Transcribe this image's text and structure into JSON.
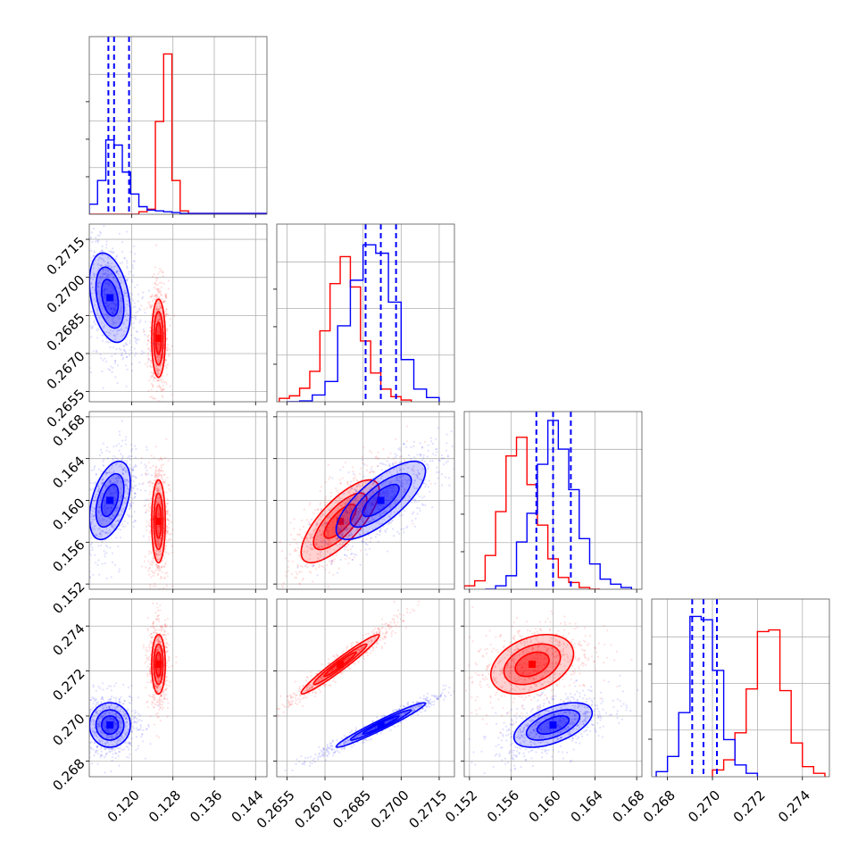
{
  "chart_data": {
    "type": "corner",
    "grid": true,
    "colors": {
      "blue_series": "#0000ff",
      "red_series": "#ff0000",
      "grid": "#b0b0b0",
      "axes": "#000000"
    },
    "series": [
      {
        "color": "blue"
      },
      {
        "color": "red"
      }
    ],
    "parameters": [
      {
        "range": [
          0.1118,
          0.1462
        ],
        "x_ticks": [
          "0.120",
          "0.128",
          "0.136",
          "0.144"
        ],
        "x_tick_values": [
          0.12,
          0.128,
          0.136,
          0.144
        ],
        "quantile_lines": [
          0.1155,
          0.1166,
          0.1195
        ],
        "histograms": {
          "blue": {
            "bins": [
              0.1118,
              0.1134,
              0.115,
              0.1166,
              0.1182,
              0.1198,
              0.1214,
              0.123,
              0.1246,
              0.1262,
              0.1278,
              0.1294,
              0.1462
            ],
            "counts": [
              0.06,
              0.2,
              0.44,
              0.41,
              0.25,
              0.12,
              0.045,
              0.025,
              0.02,
              0.015,
              0.01,
              0.005
            ]
          },
          "red": {
            "bins": [
              0.1118,
              0.1214,
              0.123,
              0.1246,
              0.1262,
              0.1278,
              0.1294,
              0.131,
              0.1462
            ],
            "counts": [
              0.0,
              0.015,
              0.03,
              0.55,
              0.95,
              0.2,
              0.02,
              0.005
            ]
          }
        }
      },
      {
        "range": [
          0.2651,
          0.2721
        ],
        "x_ticks": [
          "0.2655",
          "0.2670",
          "0.2685",
          "0.2700",
          "0.2715"
        ],
        "x_tick_values": [
          0.2655,
          0.267,
          0.2685,
          0.27,
          0.2715
        ],
        "y_ticks": [
          "0.2655",
          "0.2670",
          "0.2685",
          "0.2700",
          "0.2715"
        ],
        "y_tick_values": [
          0.2655,
          0.267,
          0.2685,
          0.27,
          0.2715
        ],
        "quantile_lines": [
          0.2686,
          0.2692,
          0.2698
        ],
        "histograms": {
          "blue": {
            "bins": [
              0.2655,
              0.266,
              0.2665,
              0.267,
              0.2675,
              0.268,
              0.2685,
              0.269,
              0.2695,
              0.27,
              0.2705,
              0.271,
              0.2715
            ],
            "counts": [
              0.0,
              0.005,
              0.04,
              0.12,
              0.45,
              0.72,
              0.93,
              0.88,
              0.59,
              0.25,
              0.075,
              0.025
            ]
          },
          "red": {
            "bins": [
              0.2652,
              0.2656,
              0.266,
              0.2664,
              0.2668,
              0.2672,
              0.2676,
              0.268,
              0.2684,
              0.2688,
              0.2692,
              0.2696,
              0.27,
              0.2704
            ],
            "counts": [
              0.02,
              0.035,
              0.08,
              0.18,
              0.42,
              0.7,
              0.86,
              0.68,
              0.36,
              0.17,
              0.075,
              0.03,
              0.01
            ]
          }
        }
      },
      {
        "range": [
          0.1515,
          0.1685
        ],
        "x_ticks": [
          "0.152",
          "0.156",
          "0.160",
          "0.164",
          "0.168"
        ],
        "x_tick_values": [
          0.152,
          0.156,
          0.16,
          0.164,
          0.168
        ],
        "y_ticks": [
          "0.152",
          "0.156",
          "0.160",
          "0.164",
          "0.168"
        ],
        "y_tick_values": [
          0.152,
          0.156,
          0.16,
          0.164,
          0.168
        ],
        "quantile_lines": [
          0.1584,
          0.16,
          0.1617
        ],
        "histograms": {
          "blue": {
            "bins": [
              0.1535,
              0.1545,
              0.1555,
              0.1565,
              0.1575,
              0.1585,
              0.1595,
              0.1605,
              0.1615,
              0.1625,
              0.1635,
              0.1645,
              0.1655,
              0.1665,
              0.1675
            ],
            "counts": [
              0.0,
              0.02,
              0.08,
              0.28,
              0.45,
              0.74,
              1.0,
              0.83,
              0.59,
              0.3,
              0.15,
              0.06,
              0.03,
              0.01
            ]
          },
          "red": {
            "bins": [
              0.1515,
              0.1525,
              0.1535,
              0.1545,
              0.1555,
              0.1565,
              0.1575,
              0.1585,
              0.1595,
              0.1605,
              0.1615,
              0.1625,
              0.1635,
              0.1645
            ],
            "counts": [
              0.02,
              0.05,
              0.2,
              0.46,
              0.79,
              0.9,
              0.62,
              0.38,
              0.18,
              0.07,
              0.04,
              0.01,
              0.0
            ]
          }
        }
      },
      {
        "range": [
          0.2673,
          0.2752
        ],
        "x_ticks": [
          "0.268",
          "0.270",
          "0.272",
          "0.274"
        ],
        "x_tick_values": [
          0.268,
          0.27,
          0.272,
          0.274
        ],
        "y_ticks": [
          "0.268",
          "0.270",
          "0.272",
          "0.274"
        ],
        "y_tick_values": [
          0.268,
          0.27,
          0.272,
          0.274
        ],
        "quantile_lines": [
          0.2691,
          0.2696,
          0.2702
        ],
        "histograms": {
          "blue": {
            "bins": [
              0.2675,
              0.268,
              0.2685,
              0.269,
              0.2695,
              0.27,
              0.2705,
              0.271,
              0.2715,
              0.272
            ],
            "counts": [
              0.03,
              0.12,
              0.38,
              0.95,
              0.93,
              0.63,
              0.22,
              0.07,
              0.02
            ]
          },
          "red": {
            "bins": [
              0.27,
              0.2705,
              0.271,
              0.2715,
              0.272,
              0.2725,
              0.273,
              0.2735,
              0.274,
              0.2745,
              0.275
            ],
            "counts": [
              0.04,
              0.1,
              0.26,
              0.52,
              0.86,
              0.87,
              0.51,
              0.2,
              0.06,
              0.02
            ]
          }
        }
      }
    ],
    "joint_peaks": {
      "blue": [
        0.1158,
        0.2692,
        0.16,
        0.2696
      ],
      "red": [
        0.1252,
        0.2676,
        0.158,
        0.2723
      ]
    },
    "joint_spread": {
      "blue": [
        0.0018,
        0.0008,
        0.0017,
        0.00045
      ],
      "red": [
        0.0006,
        0.0007,
        0.0018,
        0.0006
      ]
    },
    "joint_correlation": {
      "blue": {
        "1-0": -0.35,
        "2-0": 0.45,
        "3-0": 0.0,
        "2-1": 0.75,
        "3-1": 0.97,
        "3-2": 0.55
      },
      "red": {
        "1-0": 0.0,
        "2-0": 0.0,
        "3-0": 0.0,
        "2-1": 0.75,
        "3-1": 0.97,
        "3-2": 0.35
      }
    }
  }
}
